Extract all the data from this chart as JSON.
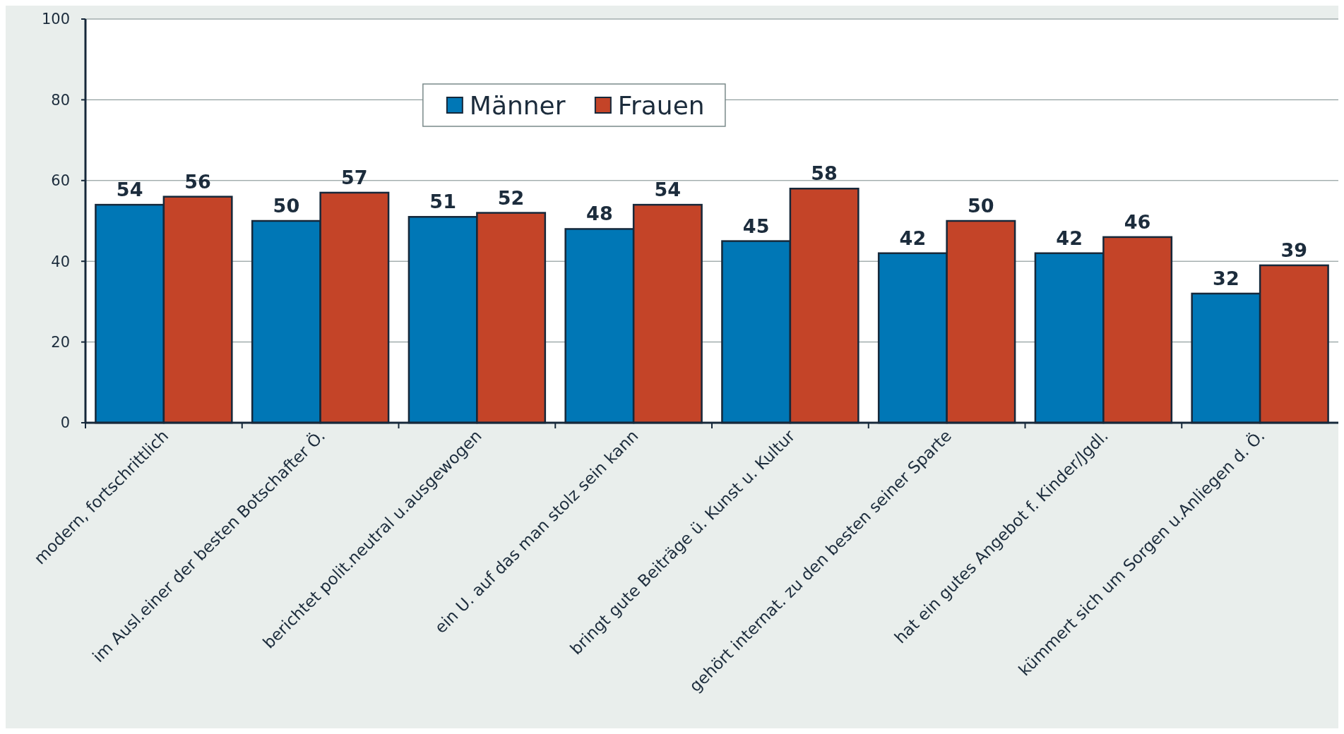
{
  "chart_data": {
    "type": "bar",
    "categories": [
      "modern, fortschrittlich",
      "im Ausl.einer der besten Botschafter Ö.",
      "berichtet polit.neutral u.ausgewogen",
      "ein U. auf das man stolz sein kann",
      "bringt gute Beiträge ü. Kunst u. Kultur",
      "gehört internat. zu den besten seiner Sparte",
      "hat ein gutes Angebot f. Kinder/Jgdl.",
      "kümmert sich um Sorgen u.Anliegen d. Ö."
    ],
    "series": [
      {
        "name": "Männer",
        "color": "#0077b6",
        "values": [
          54,
          50,
          51,
          48,
          45,
          42,
          42,
          32
        ]
      },
      {
        "name": "Frauen",
        "color": "#c44428",
        "values": [
          56,
          57,
          52,
          54,
          58,
          50,
          46,
          39
        ]
      }
    ],
    "ylim": [
      0,
      100
    ],
    "yticks": [
      0,
      20,
      40,
      60,
      80,
      100
    ],
    "grid": "y",
    "legend": "top",
    "data_labels": true
  }
}
